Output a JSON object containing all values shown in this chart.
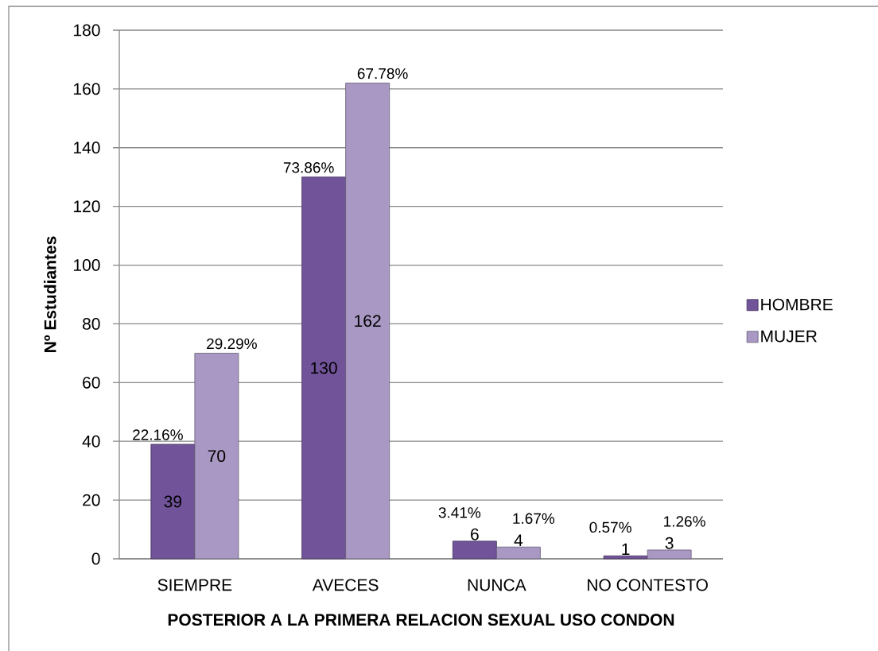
{
  "chart_data": {
    "type": "bar",
    "xlabel": "POSTERIOR A LA PRIMERA RELACION SEXUAL USO CONDON",
    "ylabel": "Nº Estudiantes",
    "categories": [
      "SIEMPRE",
      "AVECES",
      "NUNCA",
      "NO CONTESTO"
    ],
    "series": [
      {
        "name": "HOMBRE",
        "color": "#71539a",
        "values": [
          39,
          130,
          6,
          1
        ]
      },
      {
        "name": "MUJER",
        "color": "#a898c3",
        "values": [
          70,
          162,
          4,
          3
        ]
      }
    ],
    "ylim": [
      0,
      180
    ],
    "yticks": [
      0,
      20,
      40,
      60,
      80,
      100,
      120,
      140,
      160,
      180
    ],
    "grid": "y",
    "legend": "right",
    "data_labels": true,
    "annotations": [
      {
        "text": "22.16%",
        "x": "SIEMPRE",
        "y": 39
      },
      {
        "text": "73.86%",
        "x": "AVECES",
        "y": 130
      },
      {
        "text": "3.41%",
        "x": "NUNCA",
        "y": 6
      },
      {
        "text": "0.57%",
        "x": "NO CONTESTO",
        "y": 1
      },
      {
        "text": "29.29%",
        "x": "SIEMPRE",
        "y": 70
      },
      {
        "text": "67.78%",
        "x": "AVECES",
        "y": 162
      },
      {
        "text": "1.67%",
        "x": "NUNCA",
        "y": 4
      },
      {
        "text": "1.26%",
        "x": "NO CONTESTO",
        "y": 3
      }
    ]
  }
}
